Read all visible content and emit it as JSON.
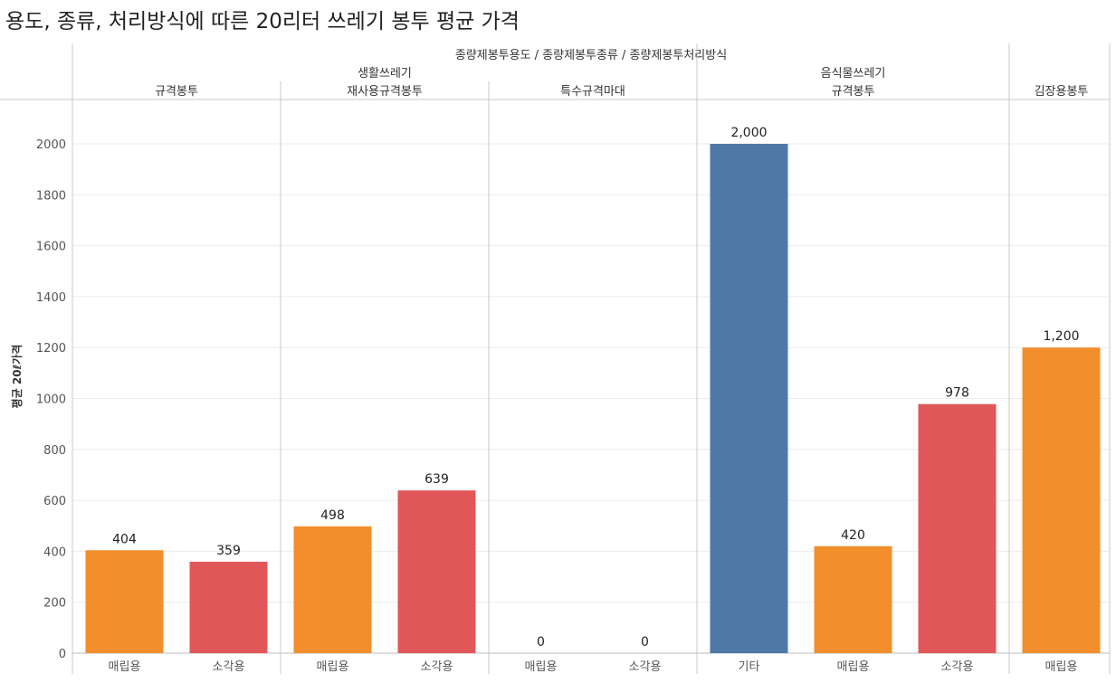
{
  "title": "용도, 종류, 처리방식에 따른 20리터 쓰레기 봉투 평균 가격",
  "chart_data": {
    "type": "bar",
    "title": "용도, 종류, 처리방식에 따른 20리터 쓰레기 봉투 평균 가격",
    "column_header": "종량제봉투용도 / 종량제봉투종류 / 종량제봉투처리방식",
    "ylabel": "평균 20ℓ가격",
    "ylim": [
      0,
      2150
    ],
    "yticks": [
      0,
      200,
      400,
      600,
      800,
      1000,
      1200,
      1400,
      1600,
      1800,
      2000
    ],
    "grid": true,
    "colors": {
      "매립용": "#f28e2b",
      "소각용": "#e15759",
      "기타": "#4e79a7"
    },
    "groups": [
      {
        "name": "생활쓰레기",
        "subgroups": [
          {
            "name": "규격봉투",
            "bars": [
              {
                "category": "매립용",
                "value": 404,
                "label": "404"
              },
              {
                "category": "소각용",
                "value": 359,
                "label": "359"
              }
            ]
          },
          {
            "name": "재사용규격봉투",
            "bars": [
              {
                "category": "매립용",
                "value": 498,
                "label": "498"
              },
              {
                "category": "소각용",
                "value": 639,
                "label": "639"
              }
            ]
          },
          {
            "name": "특수규격마대",
            "bars": [
              {
                "category": "매립용",
                "value": 0,
                "label": "0"
              },
              {
                "category": "소각용",
                "value": 0,
                "label": "0"
              }
            ]
          }
        ]
      },
      {
        "name": "음식물쓰레기",
        "subgroups": [
          {
            "name": "규격봉투",
            "bars": [
              {
                "category": "기타",
                "value": 2000,
                "label": "2,000"
              },
              {
                "category": "매립용",
                "value": 420,
                "label": "420"
              },
              {
                "category": "소각용",
                "value": 978,
                "label": "978"
              }
            ]
          }
        ]
      },
      {
        "name": "",
        "subgroups": [
          {
            "name": "김장용봉투",
            "bars": [
              {
                "category": "매립용",
                "value": 1200,
                "label": "1,200"
              }
            ]
          }
        ]
      }
    ]
  }
}
